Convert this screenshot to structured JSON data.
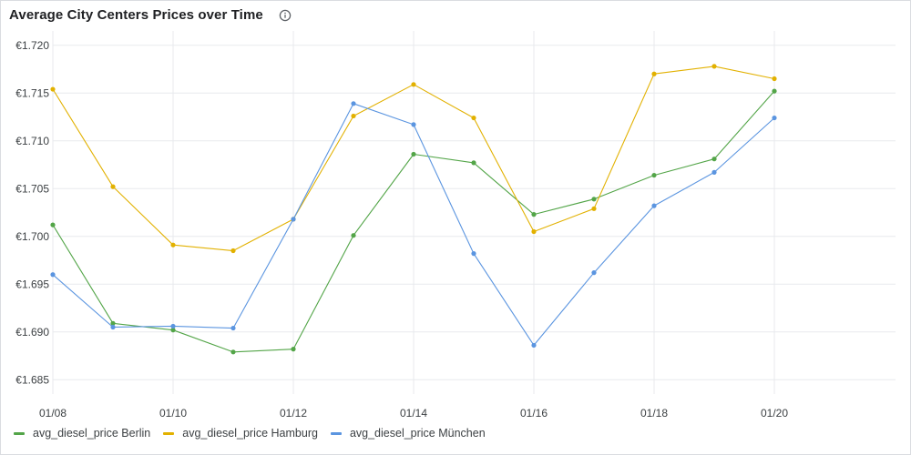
{
  "card": {
    "title": "Average City Centers Prices over Time",
    "info_icon": "info-icon"
  },
  "chart_data": {
    "type": "line",
    "title": "Average City Centers Prices over Time",
    "xlabel": "",
    "ylabel": "",
    "x": [
      "01/08",
      "01/09",
      "01/10",
      "01/11",
      "01/12",
      "01/13",
      "01/14",
      "01/15",
      "01/16",
      "01/17",
      "01/18",
      "01/19",
      "01/20"
    ],
    "x_tick_labels": [
      "01/08",
      "01/10",
      "01/12",
      "01/14",
      "01/16",
      "01/18",
      "01/20"
    ],
    "y_ticks": [
      1.685,
      1.69,
      1.695,
      1.7,
      1.705,
      1.71,
      1.715,
      1.72
    ],
    "y_tick_labels": [
      "€1.685",
      "€1.690",
      "€1.695",
      "€1.700",
      "€1.705",
      "€1.710",
      "€1.715",
      "€1.720"
    ],
    "ylim": [
      1.6835,
      1.7215
    ],
    "grid": true,
    "legend_position": "bottom-left",
    "series": [
      {
        "name": "avg_diesel_price Berlin",
        "color": "#53a548",
        "values": [
          1.7012,
          1.6909,
          1.6902,
          1.6879,
          1.6882,
          1.7001,
          1.7086,
          1.7077,
          1.7023,
          1.7039,
          1.7064,
          1.7081,
          1.7152
        ]
      },
      {
        "name": "avg_diesel_price Hamburg",
        "color": "#e2b100",
        "values": [
          1.7154,
          1.7052,
          1.6991,
          1.6985,
          1.7018,
          1.7126,
          1.7159,
          1.7124,
          1.7005,
          1.7029,
          1.717,
          1.7178,
          1.7165
        ]
      },
      {
        "name": "avg_diesel_price München",
        "color": "#5b95e0",
        "values": [
          1.696,
          1.6905,
          1.6906,
          1.6904,
          1.7018,
          1.7139,
          1.7117,
          1.6982,
          1.6886,
          1.6962,
          1.7032,
          1.7067,
          1.7124
        ]
      }
    ]
  }
}
